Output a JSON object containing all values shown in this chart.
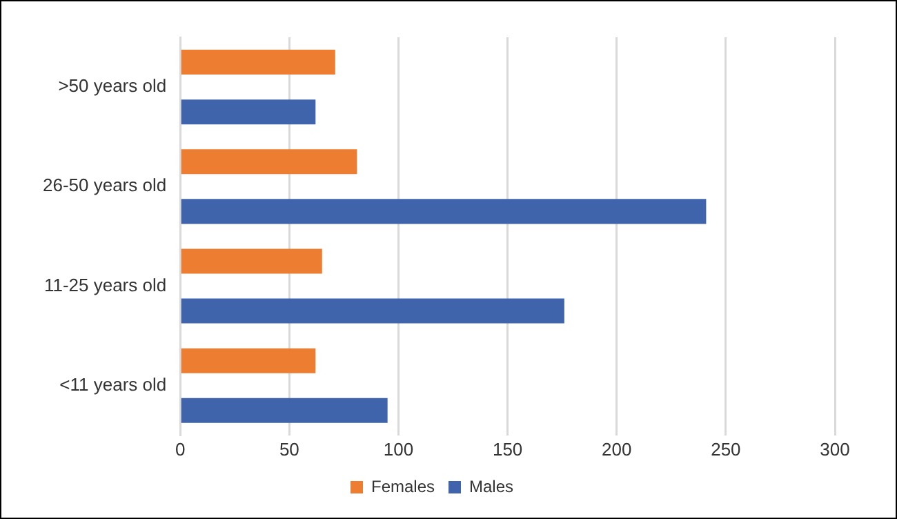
{
  "chart_data": {
    "type": "bar",
    "orientation": "horizontal",
    "categories": [
      ">50 years old",
      "26-50 years old",
      "11-25 years old",
      "<11 years old"
    ],
    "series": [
      {
        "name": "Females",
        "color": "#ed7d31",
        "values": [
          71,
          81,
          65,
          62
        ]
      },
      {
        "name": "Males",
        "color": "#4064ac",
        "values": [
          62,
          241,
          176,
          95
        ]
      }
    ],
    "xlim": [
      0,
      300
    ],
    "xticks": [
      0,
      50,
      100,
      150,
      200,
      250,
      300
    ],
    "grid": "x",
    "legend": "bottom"
  }
}
